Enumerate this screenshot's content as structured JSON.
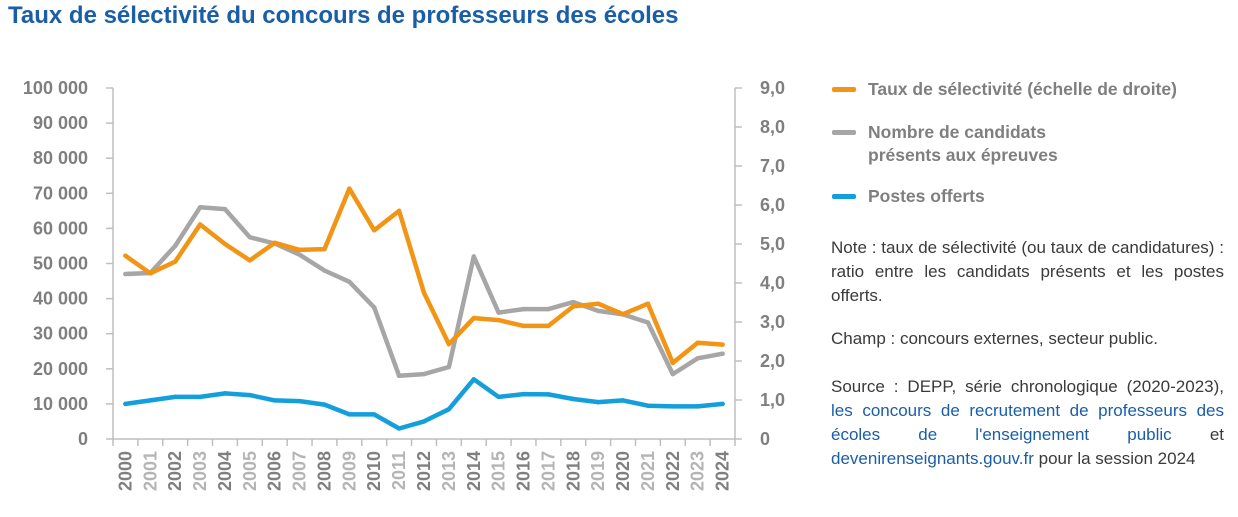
{
  "title": "Taux de sélectivité du concours de professeurs des écoles",
  "chart_data": {
    "type": "line",
    "categories": [
      "2000",
      "2001",
      "2002",
      "2003",
      "2004",
      "2005",
      "2006",
      "2007",
      "2008",
      "2009",
      "2010",
      "2011",
      "2012",
      "2013",
      "2014",
      "2015",
      "2016",
      "2017",
      "2018",
      "2019",
      "2020",
      "2021",
      "2022",
      "2023",
      "2024"
    ],
    "x_tick_colors": [
      "#7f7f7f",
      "#b4b4b4",
      "#7f7f7f",
      "#b4b4b4",
      "#7f7f7f",
      "#b4b4b4",
      "#7f7f7f",
      "#b4b4b4",
      "#7f7f7f",
      "#b4b4b4",
      "#7f7f7f",
      "#b4b4b4",
      "#7f7f7f",
      "#b4b4b4",
      "#7f7f7f",
      "#b4b4b4",
      "#7f7f7f",
      "#b4b4b4",
      "#7f7f7f",
      "#b4b4b4",
      "#7f7f7f",
      "#b4b4b4",
      "#7f7f7f",
      "#b4b4b4",
      "#7f7f7f"
    ],
    "y_left": {
      "ylim": [
        0,
        100000
      ],
      "ticks": [
        0,
        10000,
        20000,
        30000,
        40000,
        50000,
        60000,
        70000,
        80000,
        90000,
        100000
      ],
      "tick_labels": [
        "0",
        "10 000",
        "20 000",
        "30 000",
        "40 000",
        "50 000",
        "60 000",
        "70 000",
        "80 000",
        "90 000",
        "100 000"
      ]
    },
    "y_right": {
      "ylim": [
        0,
        9
      ],
      "ticks": [
        0,
        1,
        2,
        3,
        4,
        5,
        6,
        7,
        8,
        9
      ],
      "tick_labels": [
        "0",
        "1,0",
        "2,0",
        "3,0",
        "4,0",
        "5,0",
        "6,0",
        "7,0",
        "8,0",
        "9,0"
      ]
    },
    "grid": false,
    "legend_position": "right",
    "series": [
      {
        "name": "Nombre de candidats présents aux épreuves",
        "axis": "left",
        "color": "#a6a6a6",
        "values": [
          47000,
          47300,
          55000,
          66000,
          65500,
          57500,
          55700,
          52500,
          48000,
          44800,
          37500,
          18000,
          18500,
          20500,
          52000,
          36000,
          37000,
          37000,
          39000,
          36500,
          35500,
          33200,
          18500,
          23000,
          24300
        ]
      },
      {
        "name": "Postes offerts",
        "axis": "left",
        "color": "#149fdc",
        "values": [
          10000,
          11000,
          12000,
          12000,
          13000,
          12500,
          11000,
          10800,
          9800,
          7000,
          7000,
          3000,
          5000,
          8500,
          17000,
          12000,
          12800,
          12700,
          11400,
          10500,
          11000,
          9500,
          9300,
          9300,
          10000
        ]
      },
      {
        "name": "Taux de sélectivité (échelle de droite)",
        "axis": "right",
        "color": "#f29414",
        "values": [
          4.7,
          4.25,
          4.55,
          5.5,
          5.0,
          4.58,
          5.03,
          4.85,
          4.87,
          6.42,
          5.35,
          5.85,
          3.75,
          2.43,
          3.1,
          3.05,
          2.9,
          2.9,
          3.4,
          3.47,
          3.2,
          3.47,
          1.95,
          2.47,
          2.42
        ]
      }
    ]
  },
  "legend": [
    {
      "label": "Taux de sélectivité  (échelle de droite)",
      "color": "#f29414"
    },
    {
      "label": "Nombre de candidats présents aux épreuves",
      "color": "#a6a6a6"
    },
    {
      "label": "Postes offerts",
      "color": "#149fdc"
    }
  ],
  "note": "Note : taux de  sélectivité (ou taux de candidatures) : ratio entre les candidats présents et les postes offerts.",
  "champ": "Champ : concours externes, secteur public.",
  "source": {
    "prefix": "Source : DEPP, série  chronologique (2020-2023),",
    "link1": "les concours de recrutement de professeurs des écoles de l'enseignement public",
    "middle": "et",
    "link2": "devenirenseignants.gouv.fr",
    "suffix": "pour la session 2024"
  }
}
